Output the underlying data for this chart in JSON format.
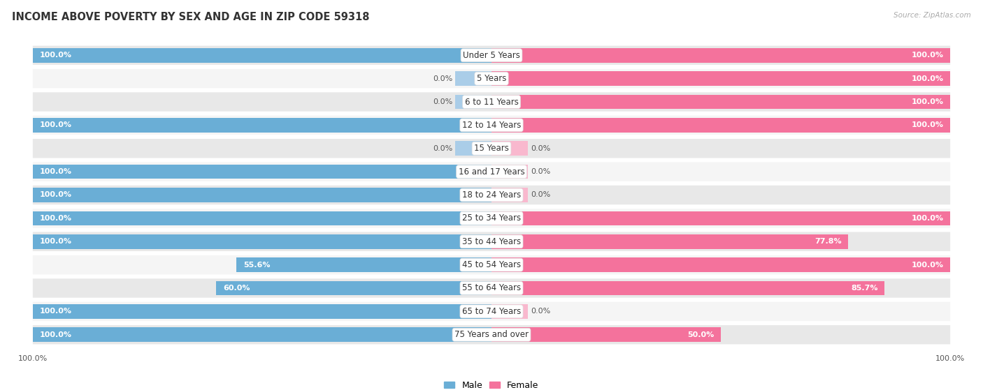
{
  "title": "INCOME ABOVE POVERTY BY SEX AND AGE IN ZIP CODE 59318",
  "source": "Source: ZipAtlas.com",
  "categories": [
    "Under 5 Years",
    "5 Years",
    "6 to 11 Years",
    "12 to 14 Years",
    "15 Years",
    "16 and 17 Years",
    "18 to 24 Years",
    "25 to 34 Years",
    "35 to 44 Years",
    "45 to 54 Years",
    "55 to 64 Years",
    "65 to 74 Years",
    "75 Years and over"
  ],
  "male": [
    100.0,
    0.0,
    0.0,
    100.0,
    0.0,
    100.0,
    100.0,
    100.0,
    100.0,
    55.6,
    60.0,
    100.0,
    100.0
  ],
  "female": [
    100.0,
    100.0,
    100.0,
    100.0,
    0.0,
    0.0,
    0.0,
    100.0,
    77.8,
    100.0,
    85.7,
    0.0,
    50.0
  ],
  "male_color": "#6aaed6",
  "male_color_light": "#aacde8",
  "female_color": "#f4729c",
  "female_color_light": "#f9b8ce",
  "bg_color": "#ffffff",
  "row_bg_colors": [
    "#e8e8e8",
    "#f5f5f5"
  ],
  "title_fontsize": 10.5,
  "label_fontsize": 8.5,
  "bar_label_fontsize": 8,
  "bar_label_white_fontsize": 8,
  "legend_fontsize": 9,
  "zero_stub": 8.0
}
